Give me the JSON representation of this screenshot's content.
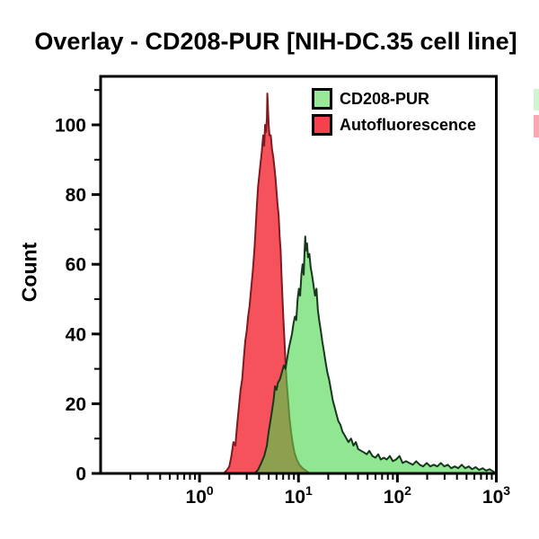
{
  "title": "Overlay - CD208-PUR [NIH-DC.35 cell line]",
  "legend": {
    "items": [
      {
        "label": "CD208-PUR",
        "fill": "#98e898",
        "border": "#000000"
      },
      {
        "label": "Autofluorescence",
        "fill": "#f4424d",
        "border": "#000000"
      }
    ]
  },
  "colors": {
    "frame": "#000000",
    "red_fill": "#f6525c",
    "red_stroke": "#7f1a20",
    "green_fill_rgba": "rgba(72,213,72,0.6)",
    "green_stroke": "#17371c"
  },
  "chart_data": {
    "type": "area",
    "title": "Overlay - CD208-PUR [NIH-DC.35 cell line]",
    "xlabel": "",
    "ylabel": "Count",
    "x_axis": {
      "scale": "log10",
      "min": 0.1,
      "max": 1000,
      "major_ticks": [
        {
          "value": 1,
          "base": "10",
          "exp": "0",
          "label": "10⁰"
        },
        {
          "value": 10,
          "base": "10",
          "exp": "1",
          "label": "10¹"
        },
        {
          "value": 100,
          "base": "10",
          "exp": "2",
          "label": "10²"
        },
        {
          "value": 1000,
          "base": "10",
          "exp": "3",
          "label": "10³"
        }
      ],
      "minor_tick_multipliers": [
        2,
        3,
        4,
        5,
        6,
        7,
        8,
        9
      ],
      "minor_tick_decades": [
        -1,
        0,
        1,
        2
      ]
    },
    "y_axis": {
      "label": "Count",
      "min": 0,
      "max": 114,
      "major_ticks": [
        0,
        20,
        40,
        60,
        80,
        100
      ],
      "minor_ticks": [
        10,
        30,
        50,
        70,
        90,
        110
      ]
    },
    "legend_position": "top-center-inside",
    "grid": false,
    "series": [
      {
        "name": "Autofluorescence",
        "fill": "#f6525c",
        "stroke": "#7f1a20",
        "stroke_width": 2,
        "points": [
          [
            1.75,
            0
          ],
          [
            1.9,
            1
          ],
          [
            2.0,
            2
          ],
          [
            2.1,
            5
          ],
          [
            2.2,
            9
          ],
          [
            2.3,
            8
          ],
          [
            2.4,
            14
          ],
          [
            2.5,
            19
          ],
          [
            2.6,
            24
          ],
          [
            2.7,
            27
          ],
          [
            2.8,
            33
          ],
          [
            2.9,
            38
          ],
          [
            3.0,
            41
          ],
          [
            3.1,
            45
          ],
          [
            3.2,
            48
          ],
          [
            3.3,
            52
          ],
          [
            3.45,
            58
          ],
          [
            3.6,
            65
          ],
          [
            3.7,
            71
          ],
          [
            3.8,
            77
          ],
          [
            3.9,
            82
          ],
          [
            4.0,
            85
          ],
          [
            4.1,
            88
          ],
          [
            4.25,
            92
          ],
          [
            4.4,
            97
          ],
          [
            4.5,
            94
          ],
          [
            4.6,
            100
          ],
          [
            4.7,
            98
          ],
          [
            4.8,
            102
          ],
          [
            4.85,
            109
          ],
          [
            4.9,
            106
          ],
          [
            5.0,
            100
          ],
          [
            5.1,
            97
          ],
          [
            5.25,
            97
          ],
          [
            5.4,
            93
          ],
          [
            5.55,
            91
          ],
          [
            5.7,
            88
          ],
          [
            5.85,
            85
          ],
          [
            6.0,
            81
          ],
          [
            6.15,
            77
          ],
          [
            6.3,
            74
          ],
          [
            6.45,
            68
          ],
          [
            6.6,
            64
          ],
          [
            6.75,
            56
          ],
          [
            6.9,
            50
          ],
          [
            7.05,
            44
          ],
          [
            7.2,
            39
          ],
          [
            7.4,
            32
          ],
          [
            7.6,
            26
          ],
          [
            7.85,
            21
          ],
          [
            8.1,
            16
          ],
          [
            8.4,
            12
          ],
          [
            8.7,
            9
          ],
          [
            9.1,
            6
          ],
          [
            9.6,
            4
          ],
          [
            10.2,
            2.5
          ],
          [
            11,
            1.5
          ],
          [
            12,
            0.7
          ],
          [
            13,
            0
          ]
        ]
      },
      {
        "name": "CD208-PUR",
        "fill": "rgba(72,213,72,0.6)",
        "stroke": "#17371c",
        "stroke_width": 2,
        "points": [
          [
            3.6,
            0
          ],
          [
            3.9,
            1
          ],
          [
            4.2,
            3
          ],
          [
            4.5,
            5
          ],
          [
            4.8,
            8
          ],
          [
            5.0,
            12
          ],
          [
            5.2,
            15
          ],
          [
            5.4,
            18
          ],
          [
            5.6,
            21
          ],
          [
            5.8,
            25
          ],
          [
            6.0,
            24
          ],
          [
            6.2,
            26
          ],
          [
            6.5,
            27
          ],
          [
            6.8,
            29
          ],
          [
            7.1,
            31
          ],
          [
            7.4,
            30
          ],
          [
            7.7,
            33
          ],
          [
            8.0,
            36
          ],
          [
            8.3,
            38
          ],
          [
            8.6,
            40
          ],
          [
            8.9,
            43
          ],
          [
            9.2,
            45
          ],
          [
            9.5,
            44
          ],
          [
            9.8,
            50
          ],
          [
            10.1,
            53
          ],
          [
            10.4,
            51
          ],
          [
            10.7,
            57
          ],
          [
            11.0,
            60
          ],
          [
            11.3,
            57
          ],
          [
            11.5,
            63
          ],
          [
            11.7,
            68
          ],
          [
            11.9,
            64
          ],
          [
            12.2,
            66
          ],
          [
            12.5,
            62
          ],
          [
            12.9,
            63
          ],
          [
            13.3,
            59
          ],
          [
            13.7,
            57
          ],
          [
            14.2,
            54
          ],
          [
            14.7,
            51
          ],
          [
            15.2,
            53
          ],
          [
            15.7,
            47
          ],
          [
            16.2,
            44
          ],
          [
            16.8,
            41
          ],
          [
            17.4,
            38
          ],
          [
            18.1,
            35
          ],
          [
            18.8,
            32
          ],
          [
            19.6,
            29
          ],
          [
            20.4,
            27
          ],
          [
            21.3,
            24
          ],
          [
            22.2,
            21
          ],
          [
            23.2,
            19
          ],
          [
            24.2,
            17
          ],
          [
            25.3,
            15
          ],
          [
            26.5,
            14
          ],
          [
            27.8,
            12
          ],
          [
            29.2,
            11
          ],
          [
            30.6,
            10
          ],
          [
            32,
            9
          ],
          [
            34,
            10
          ],
          [
            36,
            8
          ],
          [
            38,
            9
          ],
          [
            40,
            7
          ],
          [
            43,
            6.5
          ],
          [
            46,
            6
          ],
          [
            49,
            5.5
          ],
          [
            52,
            6.5
          ],
          [
            56,
            5
          ],
          [
            60,
            4.5
          ],
          [
            64,
            5.5
          ],
          [
            68,
            4
          ],
          [
            73,
            4.5
          ],
          [
            78,
            4
          ],
          [
            84,
            5
          ],
          [
            90,
            3.5
          ],
          [
            97,
            4
          ],
          [
            105,
            5
          ],
          [
            113,
            3
          ],
          [
            122,
            3.5
          ],
          [
            132,
            3
          ],
          [
            143,
            2.5
          ],
          [
            155,
            3.5
          ],
          [
            168,
            2.5
          ],
          [
            182,
            2
          ],
          [
            198,
            3
          ],
          [
            215,
            2
          ],
          [
            233,
            2.5
          ],
          [
            253,
            2
          ],
          [
            275,
            3
          ],
          [
            298,
            2
          ],
          [
            323,
            2.5
          ],
          [
            350,
            1.5
          ],
          [
            380,
            2
          ],
          [
            412,
            1.5
          ],
          [
            447,
            2.5
          ],
          [
            485,
            1.5
          ],
          [
            526,
            2
          ],
          [
            570,
            1.2
          ],
          [
            618,
            1.8
          ],
          [
            670,
            1
          ],
          [
            727,
            1.5
          ],
          [
            788,
            0.8
          ],
          [
            855,
            1.2
          ],
          [
            927,
            0.6
          ],
          [
            1000,
            0
          ]
        ]
      }
    ]
  }
}
